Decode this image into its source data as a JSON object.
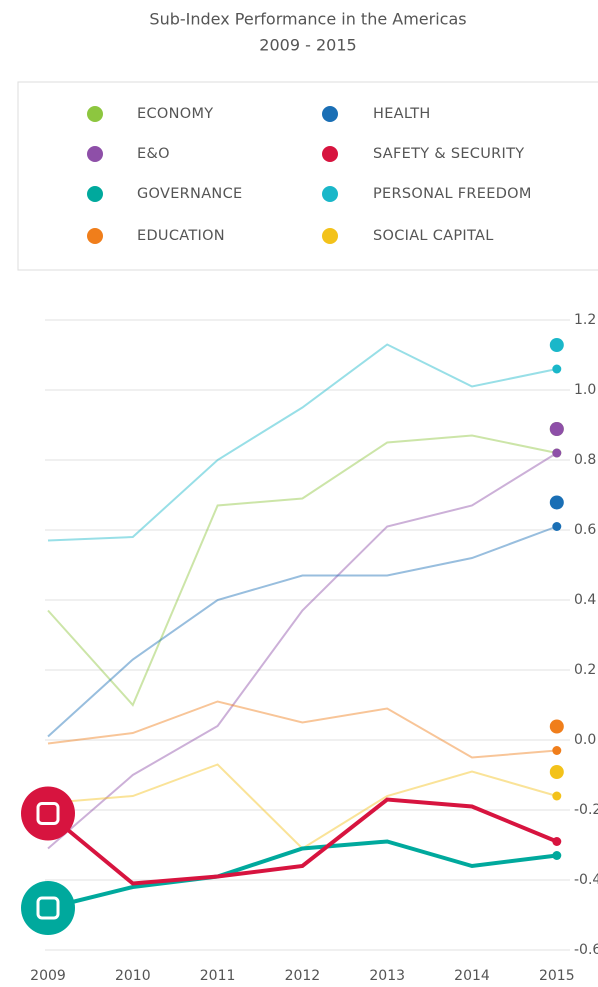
{
  "chart_data": {
    "type": "line",
    "title": "Sub-Index Performance in the Americas",
    "subtitle": "2009 - 2015",
    "categories": [
      "2009",
      "2010",
      "2011",
      "2012",
      "2013",
      "2014",
      "2015"
    ],
    "series": [
      {
        "name": "ECONOMY",
        "color": "#8dc63f",
        "width": 2,
        "values": [
          0.37,
          0.1,
          0.67,
          0.69,
          0.85,
          0.87,
          0.82
        ]
      },
      {
        "name": "E&O",
        "color": "#8e4fa8",
        "width": 2,
        "values": [
          -0.31,
          -0.1,
          0.04,
          0.37,
          0.61,
          0.67,
          0.82
        ]
      },
      {
        "name": "GOVERNANCE",
        "color": "#00a99d",
        "width": 4,
        "values": [
          -0.48,
          -0.42,
          -0.39,
          -0.31,
          -0.29,
          -0.36,
          -0.33
        ]
      },
      {
        "name": "EDUCATION",
        "color": "#f07e1b",
        "width": 2,
        "values": [
          -0.01,
          0.02,
          0.11,
          0.05,
          0.09,
          -0.05,
          -0.03
        ]
      },
      {
        "name": "HEALTH",
        "color": "#1a6fb5",
        "width": 2,
        "values": [
          0.01,
          0.23,
          0.4,
          0.47,
          0.47,
          0.52,
          0.61
        ]
      },
      {
        "name": "SAFETY & SECURITY",
        "color": "#d7143f",
        "width": 4,
        "values": [
          -0.21,
          -0.41,
          -0.39,
          -0.36,
          -0.17,
          -0.19,
          -0.29
        ]
      },
      {
        "name": "PERSONAL FREEDOM",
        "color": "#1ab7c9",
        "width": 2,
        "values": [
          0.57,
          0.58,
          0.8,
          0.95,
          1.13,
          1.01,
          1.06
        ]
      },
      {
        "name": "SOCIAL CAPITAL",
        "color": "#f3c21a",
        "width": 2,
        "values": [
          -0.18,
          -0.16,
          -0.07,
          -0.31,
          -0.16,
          -0.09,
          -0.16
        ]
      }
    ],
    "ylim": [
      -0.6,
      1.2
    ],
    "yticks": [
      {
        "value": 1.2,
        "label": "1.2"
      },
      {
        "value": 1,
        "label": "1.0"
      },
      {
        "value": 0.8,
        "label": "0.8"
      },
      {
        "value": 0.6,
        "label": "0.6"
      },
      {
        "value": 0.4,
        "label": "0.4"
      },
      {
        "value": 0.2,
        "label": "0.2"
      },
      {
        "value": 0,
        "label": "0.0"
      },
      {
        "value": -0.2,
        "label": "-0.2"
      },
      {
        "value": -0.4,
        "label": "-0.4"
      },
      {
        "value": -0.6,
        "label": "-0.6"
      }
    ],
    "grid": true
  }
}
